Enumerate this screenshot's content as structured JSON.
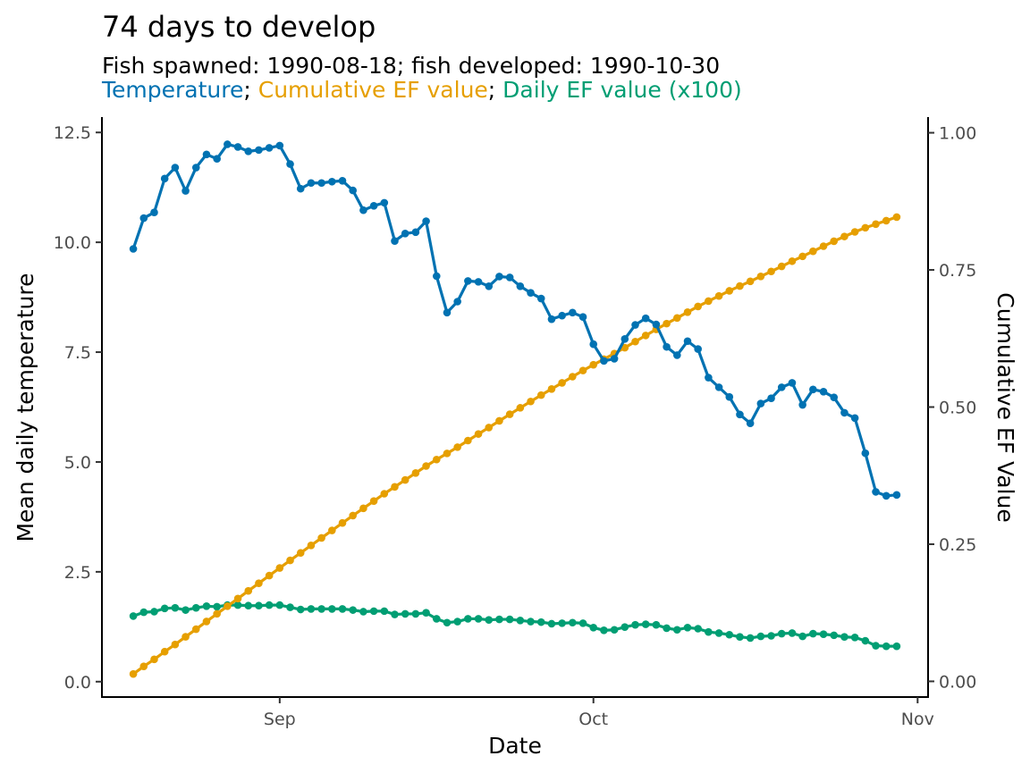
{
  "chart_data": {
    "type": "line",
    "title": "74 days to develop",
    "subtitle": "Fish spawned: 1990-08-18; fish developed: 1990-10-30",
    "legend_line": [
      {
        "text": "Temperature",
        "color": "#0072B2"
      },
      {
        "text": "; ",
        "color": "#000000"
      },
      {
        "text": "Cumulative EF value",
        "color": "#E69F00"
      },
      {
        "text": "; ",
        "color": "#000000"
      },
      {
        "text": "Daily EF value (x100)",
        "color": "#009E73"
      }
    ],
    "xlabel": "Date",
    "ylabel": "Mean daily temperature",
    "y2label": "Cumulative EF Value",
    "x_start": "1990-08-18",
    "x_ticks": [
      {
        "date": "1990-09-01",
        "label": "Sep"
      },
      {
        "date": "1990-10-01",
        "label": "Oct"
      },
      {
        "date": "1990-11-01",
        "label": "Nov"
      }
    ],
    "xlim": [
      "1990-08-15",
      "1990-11-02"
    ],
    "ylim": [
      -0.35,
      12.85
    ],
    "y_ticks": [
      0.0,
      2.5,
      5.0,
      7.5,
      10.0,
      12.5
    ],
    "y_tick_labels": [
      "0.0",
      "2.5",
      "5.0",
      "7.5",
      "10.0",
      "12.5"
    ],
    "y2lim": [
      -0.0286,
      1.0286
    ],
    "y2_ticks": [
      0.0,
      0.25,
      0.5,
      0.75,
      1.0
    ],
    "y2_tick_labels": [
      "0.00",
      "0.25",
      "0.50",
      "0.75",
      "1.00"
    ],
    "grid": false,
    "series": [
      {
        "name": "Temperature",
        "axis": "left",
        "color": "#0072B2",
        "values": [
          9.85,
          10.55,
          10.68,
          11.45,
          11.7,
          11.17,
          11.7,
          12.0,
          11.9,
          12.23,
          12.17,
          12.07,
          12.1,
          12.15,
          12.2,
          11.78,
          11.22,
          11.35,
          11.35,
          11.38,
          11.4,
          11.18,
          10.73,
          10.83,
          10.9,
          10.03,
          10.2,
          10.23,
          10.48,
          9.23,
          8.4,
          8.65,
          9.12,
          9.1,
          9.0,
          9.22,
          9.2,
          9.0,
          8.85,
          8.72,
          8.25,
          8.33,
          8.4,
          8.3,
          7.68,
          7.3,
          7.35,
          7.8,
          8.12,
          8.27,
          8.13,
          7.62,
          7.43,
          7.75,
          7.57,
          6.92,
          6.7,
          6.48,
          6.08,
          5.88,
          6.33,
          6.45,
          6.7,
          6.8,
          6.3,
          6.65,
          6.6,
          6.47,
          6.12,
          6.0,
          5.2,
          4.32,
          4.23,
          4.25
        ]
      },
      {
        "name": "Cumulative EF value",
        "axis": "right",
        "color": "#E69F00",
        "values": [
          0.0135,
          0.0273,
          0.0401,
          0.0541,
          0.0672,
          0.0812,
          0.0951,
          0.1091,
          0.1231,
          0.137,
          0.1509,
          0.1649,
          0.1788,
          0.1928,
          0.2067,
          0.2205,
          0.2341,
          0.2478,
          0.2614,
          0.2751,
          0.2887,
          0.3022,
          0.3154,
          0.3287,
          0.342,
          0.3545,
          0.3671,
          0.3797,
          0.3925,
          0.4043,
          0.4155,
          0.4269,
          0.4389,
          0.4509,
          0.4627,
          0.4748,
          0.4868,
          0.4986,
          0.5102,
          0.5218,
          0.5329,
          0.5441,
          0.5554,
          0.5666,
          0.5771,
          0.5873,
          0.5975,
          0.6082,
          0.6193,
          0.6305,
          0.6416,
          0.6521,
          0.6624,
          0.673,
          0.6834,
          0.6931,
          0.7025,
          0.7118,
          0.7206,
          0.7292,
          0.7381,
          0.7472,
          0.7565,
          0.7659,
          0.7747,
          0.784,
          0.7932,
          0.8023,
          0.8109,
          0.8193,
          0.8268,
          0.8334,
          0.8398,
          0.8463
        ]
      },
      {
        "name": "Daily EF value (x100)",
        "axis": "right",
        "color": "#009E73",
        "values": [
          0.119,
          0.126,
          0.127,
          0.133,
          0.134,
          0.13,
          0.134,
          0.137,
          0.136,
          0.139,
          0.139,
          0.138,
          0.138,
          0.139,
          0.139,
          0.135,
          0.131,
          0.132,
          0.132,
          0.132,
          0.132,
          0.13,
          0.127,
          0.128,
          0.128,
          0.122,
          0.123,
          0.123,
          0.125,
          0.114,
          0.107,
          0.109,
          0.114,
          0.114,
          0.112,
          0.113,
          0.113,
          0.111,
          0.109,
          0.108,
          0.105,
          0.106,
          0.107,
          0.106,
          0.098,
          0.093,
          0.094,
          0.099,
          0.103,
          0.104,
          0.103,
          0.097,
          0.094,
          0.098,
          0.096,
          0.09,
          0.088,
          0.085,
          0.081,
          0.079,
          0.082,
          0.083,
          0.087,
          0.088,
          0.082,
          0.087,
          0.086,
          0.084,
          0.081,
          0.08,
          0.074,
          0.065,
          0.064,
          0.064
        ]
      }
    ]
  }
}
